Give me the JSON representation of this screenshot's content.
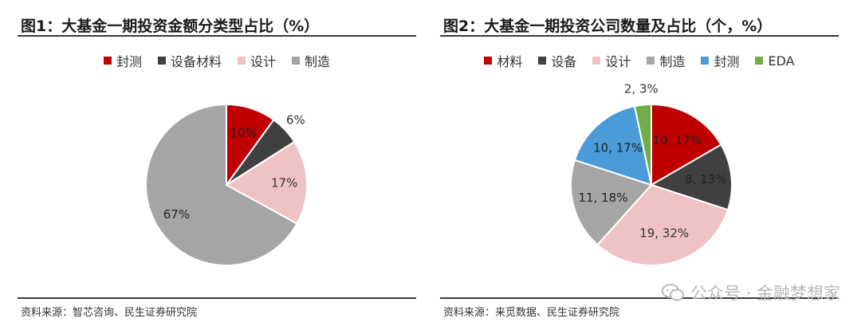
{
  "chart_data": [
    {
      "type": "pie",
      "title": "图1：大基金一期投资金额分类型占比（%）",
      "categories": [
        "封测",
        "设备材料",
        "设计",
        "制造"
      ],
      "values": [
        10,
        6,
        17,
        67
      ],
      "labels": [
        "10%",
        "6%",
        "17%",
        "67%"
      ],
      "colors": [
        "#c00000",
        "#404040",
        "#efc3c3",
        "#a5a5a5"
      ],
      "legend_position": "top",
      "source": "资料来源：智芯咨询、民生证券研究院"
    },
    {
      "type": "pie",
      "title": "图2：大基金一期投资公司数量及占比（个，%）",
      "categories": [
        "材料",
        "设备",
        "设计",
        "制造",
        "封测",
        "EDA"
      ],
      "values": [
        10,
        8,
        19,
        11,
        10,
        2
      ],
      "percents": [
        17,
        13,
        32,
        18,
        17,
        3
      ],
      "labels": [
        "10, 17%",
        "8, 13%",
        "19, 32%",
        "11, 18%",
        "10, 17%",
        "2, 3%"
      ],
      "colors": [
        "#c00000",
        "#404040",
        "#efc3c3",
        "#a5a5a5",
        "#4a9bd8",
        "#70ad47"
      ],
      "legend_position": "top",
      "source": "资料来源：来觅数据、民生证券研究院"
    }
  ],
  "watermark": {
    "text": "公众号 · 金融梦想家",
    "icon": "wechat-icon"
  }
}
